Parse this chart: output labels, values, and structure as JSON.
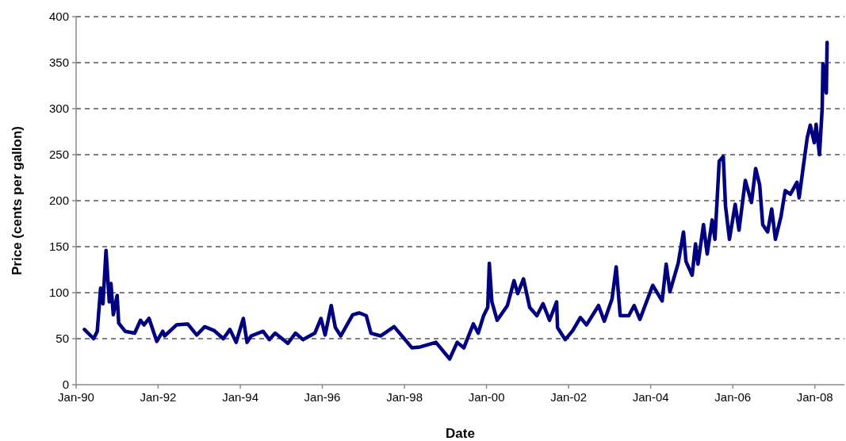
{
  "chart_data": {
    "type": "line",
    "xlabel": "Date",
    "ylabel": "Price (cents per gallon)",
    "xlim": [
      "1990-01-01",
      "2008-09-20"
    ],
    "xticks": [
      {
        "value": "1990-01-01",
        "label": "Jan-90"
      },
      {
        "value": "1992-01-01",
        "label": "Jan-92"
      },
      {
        "value": "1994-01-01",
        "label": "Jan-94"
      },
      {
        "value": "1996-01-01",
        "label": "Jan-96"
      },
      {
        "value": "1998-01-01",
        "label": "Jan-98"
      },
      {
        "value": "2000-01-01",
        "label": "Jan-00"
      },
      {
        "value": "2002-01-01",
        "label": "Jan-02"
      },
      {
        "value": "2004-01-01",
        "label": "Jan-04"
      },
      {
        "value": "2006-01-01",
        "label": "Jan-06"
      },
      {
        "value": "2008-01-01",
        "label": "Jan-08"
      }
    ],
    "ylim": [
      0,
      400
    ],
    "yticks": [
      0,
      50,
      100,
      150,
      200,
      250,
      300,
      350,
      400
    ],
    "grid": "y",
    "marker": "none",
    "line_style": "solid",
    "x": [
      "1990-03-16",
      "1990-06-06",
      "1990-07-08",
      "1990-08-07",
      "1990-08-28",
      "1990-09-24",
      "1990-10-23",
      "1990-11-07",
      "1990-11-28",
      "1991-01-01",
      "1991-01-15",
      "1991-03-13",
      "1991-06-06",
      "1991-07-28",
      "1991-08-28",
      "1991-10-12",
      "1991-12-20",
      "1992-02-11",
      "1992-02-28",
      "1992-06-13",
      "1992-09-20",
      "1992-12-09",
      "1993-02-18",
      "1993-05-11",
      "1993-08-03",
      "1993-10-01",
      "1993-11-25",
      "1994-01-28",
      "1994-03-02",
      "1994-04-08",
      "1994-07-23",
      "1994-09-16",
      "1994-11-07",
      "1995-02-28",
      "1995-05-07",
      "1995-07-12",
      "1995-10-26",
      "1995-12-20",
      "1996-01-26",
      "1996-03-20",
      "1996-04-26",
      "1996-06-13",
      "1996-09-27",
      "1996-11-25",
      "1997-01-26",
      "1997-03-09",
      "1997-06-02",
      "1997-10-01",
      "1998-03-09",
      "1998-05-21",
      "1998-10-08",
      "1999-02-07",
      "1999-04-15",
      "1999-06-13",
      "1999-09-06",
      "1999-10-19",
      "1999-12-06",
      "2000-01-12",
      "2000-01-26",
      "2000-02-18",
      "2000-04-05",
      "2000-07-05",
      "2000-09-02",
      "2000-10-05",
      "2000-11-25",
      "2001-01-19",
      "2001-03-24",
      "2001-05-18",
      "2001-07-15",
      "2001-09-16",
      "2001-09-24",
      "2001-12-02",
      "2002-02-07",
      "2002-04-15",
      "2002-06-09",
      "2002-09-24",
      "2002-11-14",
      "2003-01-22",
      "2003-02-28",
      "2003-04-05",
      "2003-06-20",
      "2003-08-07",
      "2003-09-27",
      "2004-01-19",
      "2004-04-12",
      "2004-05-18",
      "2004-06-20",
      "2004-09-02",
      "2004-10-19",
      "2004-11-10",
      "2005-01-04",
      "2005-02-03",
      "2005-02-25",
      "2005-04-15",
      "2005-05-18",
      "2005-07-01",
      "2005-07-26",
      "2005-09-02",
      "2005-10-08",
      "2005-10-28",
      "2005-12-02",
      "2006-01-22",
      "2006-02-25",
      "2006-04-22",
      "2006-06-16",
      "2006-07-23",
      "2006-08-28",
      "2006-09-24",
      "2006-11-07",
      "2006-12-13",
      "2007-01-15",
      "2007-03-06",
      "2007-04-12",
      "2007-05-28",
      "2007-07-26",
      "2007-08-14",
      "2007-09-20",
      "2007-10-26",
      "2007-11-21",
      "2007-12-27",
      "2008-01-12",
      "2008-02-11",
      "2008-03-06",
      "2008-03-13",
      "2008-04-12",
      "2008-04-19"
    ],
    "series": [
      {
        "color": "#000080",
        "values": [
          60,
          50,
          58,
          105,
          88,
          146,
          90,
          110,
          76,
          97,
          67,
          58,
          56,
          70,
          65,
          72,
          47,
          58,
          53,
          65,
          66,
          54,
          63,
          59,
          50,
          60,
          46,
          72,
          46,
          53,
          58,
          49,
          56,
          45,
          56,
          49,
          56,
          72,
          54,
          86,
          62,
          53,
          76,
          78,
          75,
          56,
          53,
          63,
          40,
          41,
          46,
          28,
          46,
          40,
          66,
          56,
          75,
          84,
          132,
          90,
          70,
          86,
          113,
          99,
          115,
          84,
          75,
          88,
          70,
          90,
          62,
          49,
          59,
          73,
          65,
          86,
          69,
          93,
          128,
          75,
          75,
          86,
          71,
          108,
          91,
          131,
          101,
          132,
          166,
          134,
          119,
          153,
          131,
          174,
          142,
          179,
          158,
          243,
          248,
          194,
          158,
          196,
          168,
          222,
          198,
          235,
          217,
          174,
          166,
          191,
          158,
          183,
          211,
          207,
          220,
          203,
          237,
          269,
          282,
          263,
          283,
          250,
          300,
          349,
          317,
          372
        ]
      }
    ]
  }
}
